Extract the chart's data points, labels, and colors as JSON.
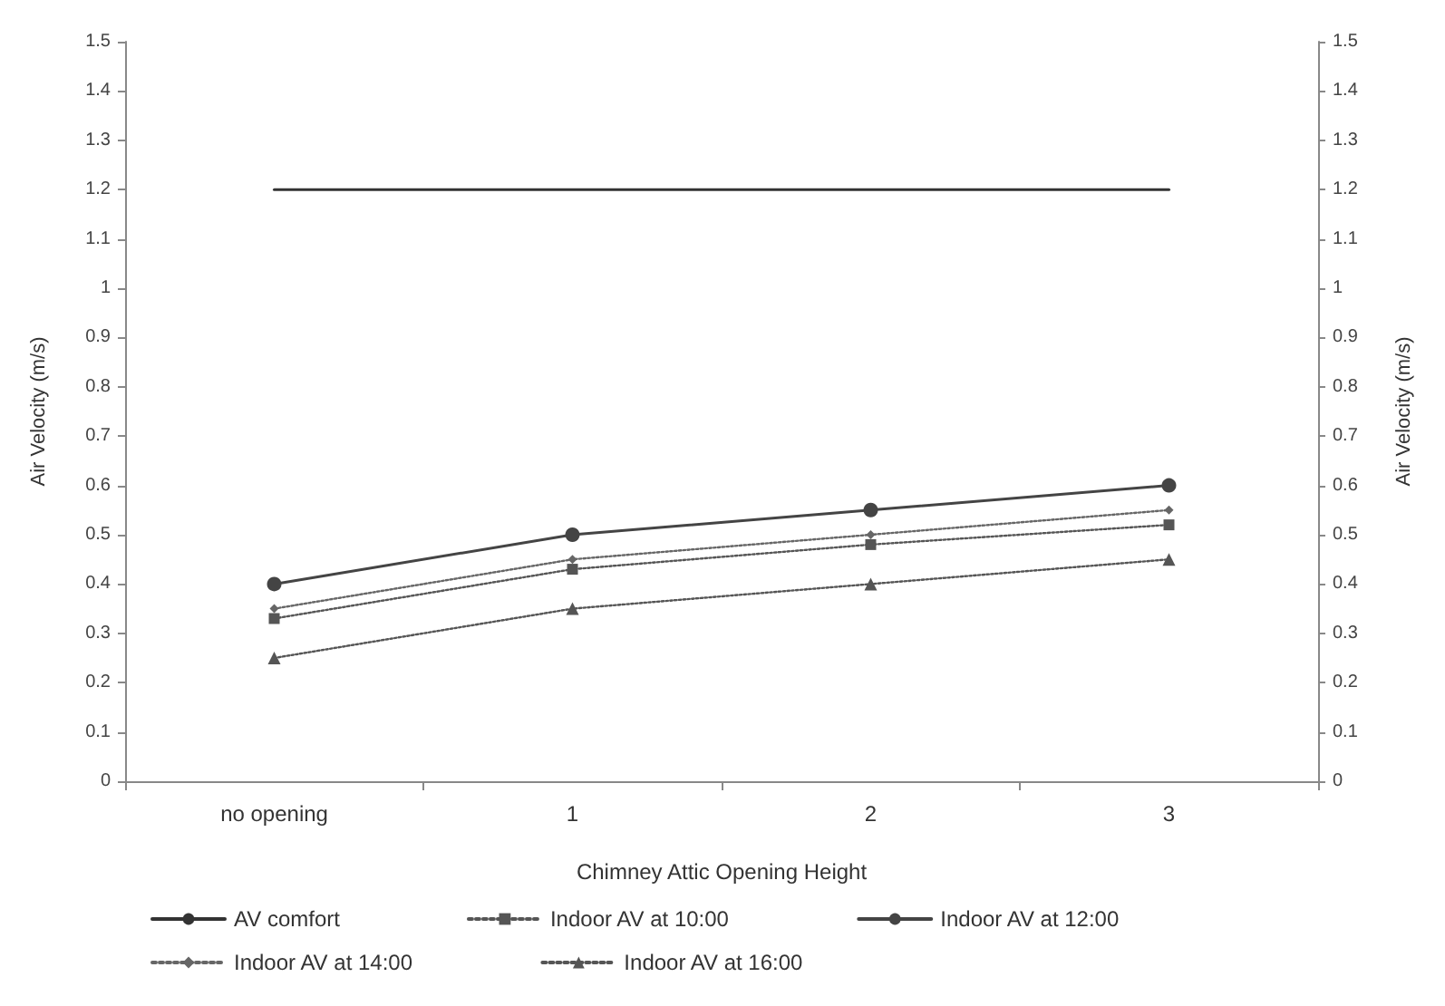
{
  "chart_data": {
    "type": "line",
    "xlabel": "Chimney Attic Opening Height",
    "ylabel": "Air Velocity (m/s)",
    "y2label": "Air Velocity (m/s)",
    "categories": [
      "no opening",
      "1",
      "2",
      "3"
    ],
    "series": [
      {
        "name": "AV comfort",
        "color": "#333333",
        "values": [
          1.2,
          1.2,
          1.2,
          1.2
        ],
        "marker": "none",
        "line_style": "solid"
      },
      {
        "name": "Indoor AV at 10:00",
        "color": "#555555",
        "values": [
          0.33,
          0.43,
          0.48,
          0.52
        ],
        "marker": "square",
        "line_style": "dotted"
      },
      {
        "name": "Indoor AV at 12:00",
        "color": "#444444",
        "values": [
          0.4,
          0.5,
          0.55,
          0.6
        ],
        "marker": "circle",
        "line_style": "solid"
      },
      {
        "name": "Indoor AV at 14:00",
        "color": "#666666",
        "values": [
          0.35,
          0.45,
          0.5,
          0.55
        ],
        "marker": "diamond",
        "line_style": "dotted"
      },
      {
        "name": "Indoor AV at 16:00",
        "color": "#555555",
        "values": [
          0.25,
          0.35,
          0.4,
          0.45
        ],
        "marker": "triangle",
        "line_style": "dotted"
      }
    ],
    "ylim": [
      0,
      1.5
    ],
    "yticks": [
      0,
      0.1,
      0.2,
      0.3,
      0.4,
      0.5,
      0.6,
      0.7,
      0.8,
      0.9,
      1,
      1.1,
      1.2,
      1.3,
      1.4,
      1.5
    ],
    "y2lim": [
      0,
      1.5
    ],
    "y2ticks": [
      0,
      0.1,
      0.2,
      0.3,
      0.4,
      0.5,
      0.6,
      0.7,
      0.8,
      0.9,
      1,
      1.1,
      1.2,
      1.3,
      1.4,
      1.5
    ],
    "grid": false,
    "legend": "bottom"
  }
}
